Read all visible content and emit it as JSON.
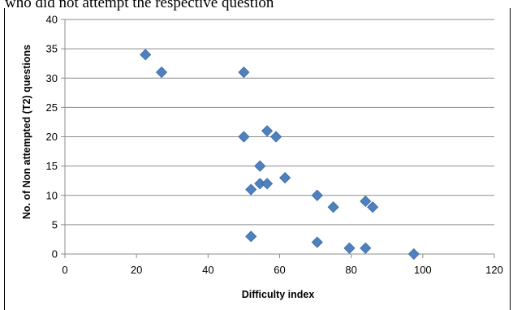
{
  "caption": "who did not attempt the respective question",
  "chart_data": {
    "type": "scatter",
    "xlabel": "Difficulty index",
    "ylabel": "No. of Non attempted (T2) questions",
    "xlim": [
      0,
      120
    ],
    "ylim": [
      0,
      40
    ],
    "xticks": [
      0,
      20,
      40,
      60,
      80,
      100,
      120
    ],
    "yticks": [
      0,
      5,
      10,
      15,
      20,
      25,
      30,
      35,
      40
    ],
    "grid": "horizontal",
    "marker": "diamond",
    "marker_color": "#4F81BD",
    "points": [
      {
        "x": 22.5,
        "y": 34
      },
      {
        "x": 27,
        "y": 31
      },
      {
        "x": 50,
        "y": 31
      },
      {
        "x": 50,
        "y": 20
      },
      {
        "x": 56.5,
        "y": 21
      },
      {
        "x": 59,
        "y": 20
      },
      {
        "x": 54.5,
        "y": 15
      },
      {
        "x": 61.5,
        "y": 13
      },
      {
        "x": 54.5,
        "y": 12
      },
      {
        "x": 56.5,
        "y": 12
      },
      {
        "x": 52,
        "y": 11
      },
      {
        "x": 70.5,
        "y": 10
      },
      {
        "x": 75,
        "y": 8
      },
      {
        "x": 84,
        "y": 9
      },
      {
        "x": 86,
        "y": 8
      },
      {
        "x": 52,
        "y": 3
      },
      {
        "x": 70.5,
        "y": 2
      },
      {
        "x": 79.5,
        "y": 1
      },
      {
        "x": 84,
        "y": 1
      },
      {
        "x": 97.5,
        "y": 0
      }
    ]
  }
}
